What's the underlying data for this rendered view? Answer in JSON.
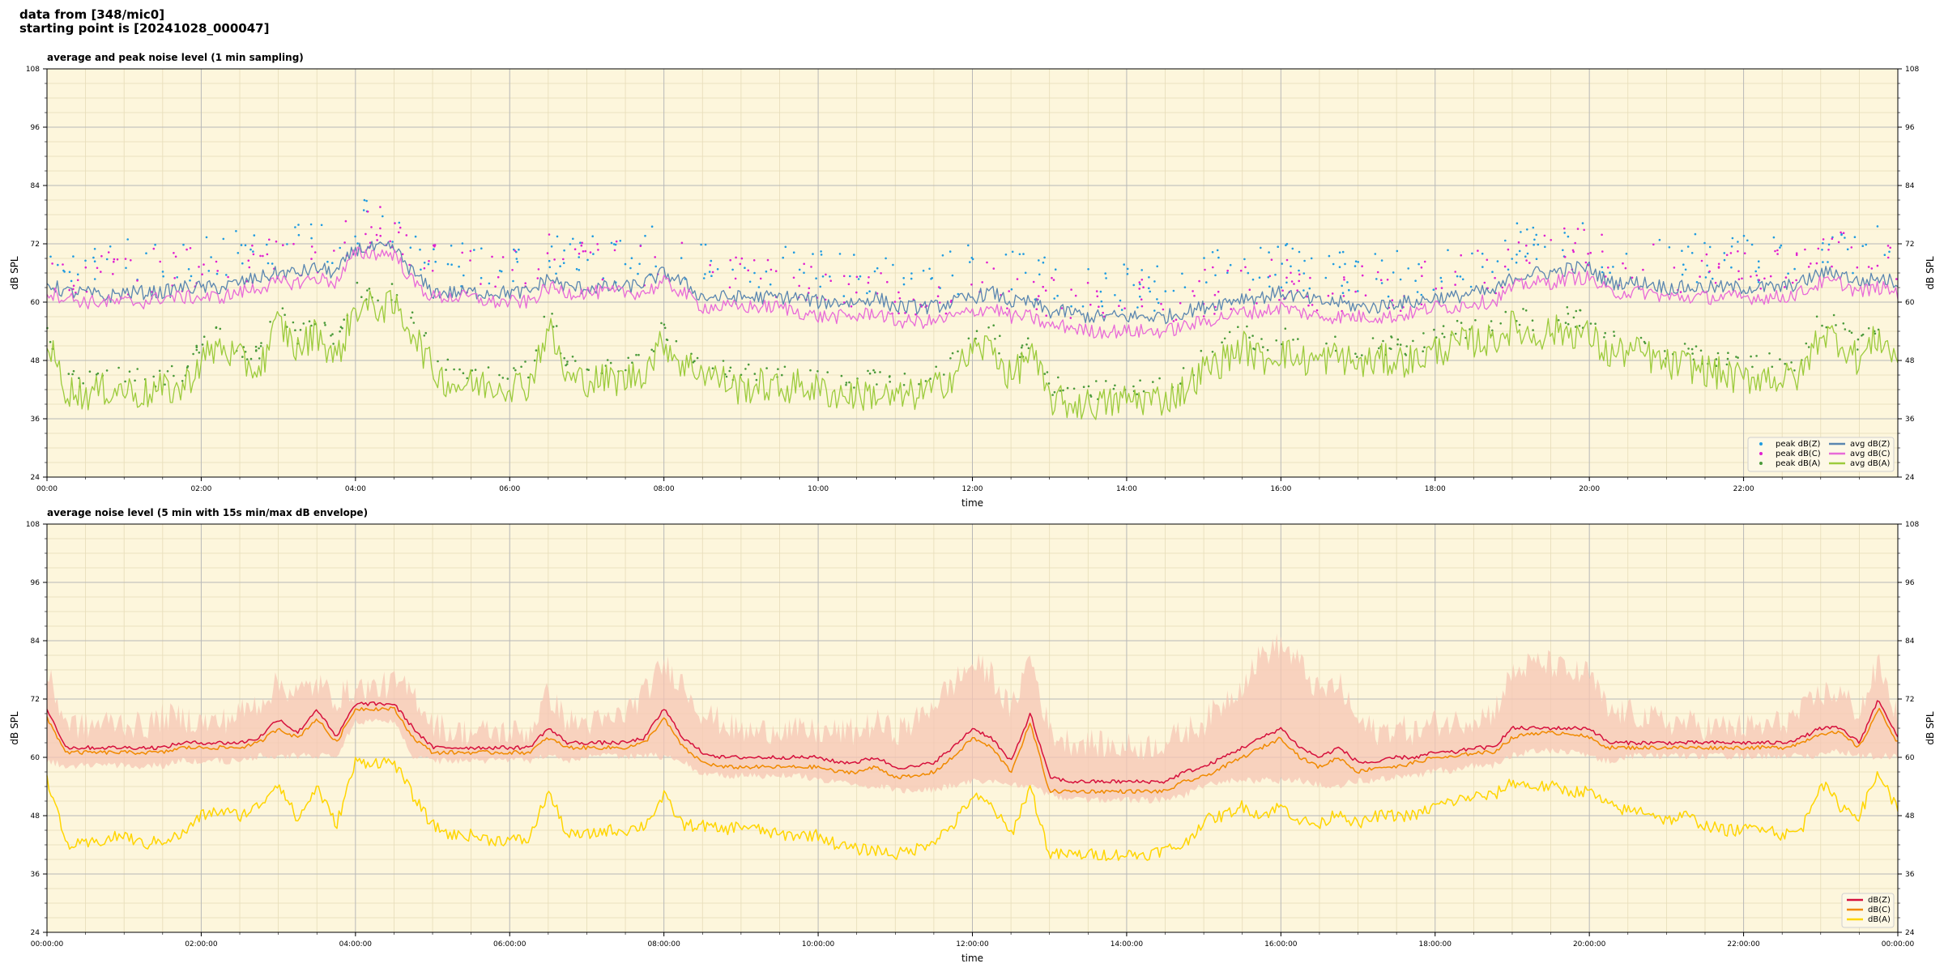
{
  "header": {
    "line1": "data from [348/mic0]",
    "line2": "starting point is [20241028_000047]"
  },
  "colors": {
    "plot_bg": "#fdf6dc",
    "grid_major": "#b8b8b8",
    "grid_minor": "#e6dcb8"
  },
  "chart_data": [
    {
      "type": "line",
      "title": "average and peak noise level (1 min sampling)",
      "xlabel": "time",
      "ylabel": "dB SPL",
      "ylabel_right": "dB SPL",
      "xlim": [
        0,
        24
      ],
      "ylim": [
        24,
        108
      ],
      "yticks": [
        24,
        36,
        48,
        60,
        72,
        84,
        96,
        108
      ],
      "xtick_labels": [
        "00:00",
        "02:00",
        "04:00",
        "06:00",
        "08:00",
        "10:00",
        "12:00",
        "14:00",
        "16:00",
        "18:00",
        "20:00",
        "22:00"
      ],
      "legend_position": "lower-right",
      "legend": [
        {
          "label": "peak dB(Z)",
          "kind": "dot",
          "color": "#1f9be0"
        },
        {
          "label": "peak dB(C)",
          "kind": "dot",
          "color": "#e020d0"
        },
        {
          "label": "peak dB(A)",
          "kind": "dot",
          "color": "#4a9a3a"
        },
        {
          "label": "avg dB(Z)",
          "kind": "line",
          "color": "#5a86b0"
        },
        {
          "label": "avg dB(C)",
          "kind": "line",
          "color": "#e86ad8"
        },
        {
          "label": "avg dB(A)",
          "kind": "line",
          "color": "#9ccb3c"
        }
      ],
      "x_hours": [
        0,
        0.25,
        0.5,
        0.75,
        1.0,
        1.25,
        1.5,
        1.75,
        2.0,
        2.25,
        2.5,
        2.75,
        3.0,
        3.25,
        3.5,
        3.75,
        4.0,
        4.25,
        4.5,
        4.75,
        5.0,
        5.25,
        5.5,
        5.75,
        6.0,
        6.25,
        6.5,
        6.75,
        7.0,
        7.25,
        7.5,
        7.75,
        8.0,
        8.25,
        8.5,
        8.75,
        9.0,
        9.25,
        9.5,
        9.75,
        10.0,
        10.25,
        10.5,
        10.75,
        11.0,
        11.25,
        11.5,
        11.75,
        12.0,
        12.25,
        12.5,
        12.75,
        13.0,
        13.25,
        13.5,
        13.75,
        14.0,
        14.25,
        14.5,
        14.75,
        15.0,
        15.25,
        15.5,
        15.75,
        16.0,
        16.25,
        16.5,
        16.75,
        17.0,
        17.25,
        17.5,
        17.75,
        18.0,
        18.25,
        18.5,
        18.75,
        19.0,
        19.25,
        19.5,
        19.75,
        20.0,
        20.25,
        20.5,
        20.75,
        21.0,
        21.25,
        21.5,
        21.75,
        22.0,
        22.25,
        22.5,
        22.75,
        23.0,
        23.25,
        23.5,
        23.75,
        24.0
      ],
      "series": [
        {
          "name": "avg dB(Z)",
          "color": "#5a86b0",
          "values": [
            64,
            62,
            62,
            61,
            62,
            62,
            62,
            63,
            63,
            63,
            64,
            65,
            66,
            66,
            67,
            66,
            71,
            71,
            71,
            66,
            62,
            62,
            62,
            62,
            62,
            62,
            65,
            63,
            63,
            63,
            63,
            64,
            66,
            64,
            61,
            61,
            61,
            61,
            61,
            61,
            60,
            60,
            60,
            61,
            59,
            59,
            59,
            60,
            61,
            62,
            60,
            60,
            58,
            58,
            57,
            57,
            57,
            57,
            57,
            58,
            59,
            60,
            61,
            61,
            62,
            61,
            60,
            60,
            59,
            59,
            60,
            60,
            61,
            61,
            62,
            62,
            65,
            66,
            66,
            67,
            67,
            64,
            64,
            64,
            63,
            63,
            63,
            63,
            63,
            63,
            63,
            64,
            66,
            66,
            64,
            65,
            64
          ]
        },
        {
          "name": "avg dB(C)",
          "color": "#e86ad8",
          "values": [
            62,
            61,
            60,
            60,
            60,
            60,
            61,
            61,
            61,
            61,
            62,
            63,
            64,
            64,
            65,
            64,
            70,
            70,
            70,
            64,
            61,
            61,
            61,
            60,
            60,
            60,
            63,
            62,
            62,
            62,
            62,
            62,
            64,
            62,
            59,
            59,
            59,
            59,
            59,
            58,
            57,
            57,
            57,
            58,
            56,
            56,
            56,
            57,
            58,
            59,
            57,
            57,
            55,
            55,
            54,
            54,
            54,
            54,
            54,
            55,
            56,
            57,
            58,
            58,
            59,
            58,
            57,
            57,
            57,
            57,
            57,
            58,
            59,
            59,
            60,
            60,
            63,
            64,
            64,
            65,
            65,
            62,
            62,
            62,
            61,
            61,
            61,
            61,
            61,
            61,
            61,
            62,
            64,
            64,
            62,
            63,
            62
          ]
        },
        {
          "name": "avg dB(A)",
          "color": "#9ccb3c",
          "values": [
            52,
            42,
            41,
            42,
            42,
            41,
            42,
            42,
            48,
            51,
            48,
            46,
            56,
            50,
            54,
            48,
            59,
            59,
            59,
            54,
            46,
            43,
            43,
            43,
            43,
            43,
            55,
            44,
            44,
            44,
            44,
            46,
            52,
            47,
            46,
            44,
            42,
            43,
            42,
            43,
            42,
            41,
            41,
            41,
            40,
            41,
            42,
            45,
            50,
            51,
            44,
            50,
            40,
            39,
            39,
            39,
            40,
            40,
            40,
            42,
            46,
            48,
            51,
            48,
            50,
            48,
            48,
            49,
            47,
            48,
            48,
            48,
            50,
            51,
            52,
            52,
            55,
            53,
            54,
            54,
            53,
            49,
            50,
            49,
            47,
            47,
            46,
            45,
            44,
            45,
            44,
            45,
            54,
            52,
            48,
            53,
            48
          ]
        }
      ]
    },
    {
      "type": "line",
      "title": "average noise level (5 min with 15s min/max dB envelope)",
      "xlabel": "time",
      "ylabel": "dB SPL",
      "ylabel_right": "dB SPL",
      "xlim": [
        0,
        24
      ],
      "ylim": [
        24,
        108
      ],
      "yticks": [
        24,
        36,
        48,
        60,
        72,
        84,
        96,
        108
      ],
      "xtick_labels": [
        "00:00:00",
        "02:00:00",
        "04:00:00",
        "06:00:00",
        "08:00:00",
        "10:00:00",
        "12:00:00",
        "14:00:00",
        "16:00:00",
        "18:00:00",
        "20:00:00",
        "22:00:00",
        "00:00:00"
      ],
      "legend_position": "lower-right",
      "legend": [
        {
          "label": "dB(Z)",
          "kind": "line",
          "color": "#d6103c"
        },
        {
          "label": "dB(C)",
          "kind": "line",
          "color": "#f08a00"
        },
        {
          "label": "dB(A)",
          "kind": "line",
          "color": "#ffd500"
        }
      ],
      "envelope_color": "#f6c6b4",
      "x_hours": [
        0,
        0.25,
        0.5,
        0.75,
        1.0,
        1.25,
        1.5,
        1.75,
        2.0,
        2.25,
        2.5,
        2.75,
        3.0,
        3.25,
        3.5,
        3.75,
        4.0,
        4.25,
        4.5,
        4.75,
        5.0,
        5.25,
        5.5,
        5.75,
        6.0,
        6.25,
        6.5,
        6.75,
        7.0,
        7.25,
        7.5,
        7.75,
        8.0,
        8.25,
        8.5,
        8.75,
        9.0,
        9.25,
        9.5,
        9.75,
        10.0,
        10.25,
        10.5,
        10.75,
        11.0,
        11.25,
        11.5,
        11.75,
        12.0,
        12.25,
        12.5,
        12.75,
        13.0,
        13.25,
        13.5,
        13.75,
        14.0,
        14.25,
        14.5,
        14.75,
        15.0,
        15.25,
        15.5,
        15.75,
        16.0,
        16.25,
        16.5,
        16.75,
        17.0,
        17.25,
        17.5,
        17.75,
        18.0,
        18.25,
        18.5,
        18.75,
        19.0,
        19.25,
        19.5,
        19.75,
        20.0,
        20.25,
        20.5,
        20.75,
        21.0,
        21.25,
        21.5,
        21.75,
        22.0,
        22.25,
        22.5,
        22.75,
        23.0,
        23.25,
        23.5,
        23.75,
        24.0
      ],
      "envelope_max": [
        76,
        66,
        65,
        66,
        66,
        65,
        67,
        67,
        66,
        66,
        68,
        70,
        74,
        72,
        74,
        71,
        73,
        73,
        74,
        72,
        66,
        64,
        64,
        64,
        64,
        64,
        72,
        66,
        66,
        66,
        68,
        72,
        78,
        74,
        68,
        66,
        64,
        64,
        65,
        64,
        64,
        64,
        64,
        66,
        64,
        66,
        70,
        74,
        78,
        76,
        68,
        80,
        64,
        62,
        62,
        61,
        61,
        61,
        62,
        64,
        66,
        70,
        74,
        80,
        82,
        78,
        72,
        74,
        66,
        64,
        65,
        64,
        66,
        66,
        67,
        68,
        76,
        78,
        78,
        76,
        76,
        68,
        68,
        67,
        66,
        66,
        65,
        65,
        65,
        65,
        66,
        68,
        72,
        72,
        68,
        78,
        67
      ],
      "envelope_min": [
        60,
        59,
        59,
        59,
        59,
        59,
        59,
        60,
        60,
        60,
        60,
        61,
        61,
        61,
        61,
        61,
        68,
        68,
        68,
        61,
        60,
        60,
        60,
        60,
        60,
        60,
        61,
        60,
        61,
        61,
        61,
        61,
        61,
        60,
        57,
        57,
        57,
        57,
        57,
        57,
        56,
        56,
        55,
        55,
        54,
        54,
        54,
        55,
        56,
        56,
        55,
        55,
        53,
        52,
        52,
        52,
        52,
        52,
        52,
        53,
        55,
        56,
        56,
        56,
        56,
        56,
        55,
        55,
        56,
        56,
        57,
        57,
        58,
        58,
        59,
        59,
        61,
        62,
        62,
        62,
        61,
        60,
        61,
        61,
        61,
        61,
        61,
        61,
        61,
        61,
        61,
        61,
        61,
        62,
        61,
        61,
        61
      ],
      "series": [
        {
          "name": "dB(Z)",
          "color": "#d6103c",
          "values": [
            70,
            62,
            62,
            62,
            62,
            62,
            62,
            63,
            63,
            63,
            63,
            64,
            68,
            65,
            70,
            64,
            71,
            71,
            71,
            66,
            62,
            62,
            62,
            62,
            62,
            62,
            66,
            63,
            63,
            63,
            63,
            64,
            70,
            64,
            61,
            60,
            60,
            60,
            60,
            60,
            60,
            59,
            59,
            60,
            58,
            58,
            59,
            62,
            66,
            64,
            59,
            69,
            56,
            55,
            55,
            55,
            55,
            55,
            55,
            57,
            58,
            60,
            62,
            64,
            66,
            62,
            60,
            62,
            59,
            59,
            60,
            60,
            61,
            61,
            62,
            62,
            66,
            66,
            66,
            66,
            66,
            63,
            63,
            63,
            63,
            63,
            63,
            63,
            63,
            63,
            63,
            64,
            66,
            66,
            63,
            72,
            64
          ]
        },
        {
          "name": "dB(C)",
          "color": "#f08a00",
          "values": [
            68,
            61,
            61,
            61,
            61,
            61,
            61,
            62,
            62,
            62,
            62,
            63,
            66,
            64,
            68,
            63,
            70,
            70,
            70,
            64,
            61,
            61,
            61,
            61,
            61,
            61,
            64,
            62,
            62,
            62,
            62,
            63,
            68,
            62,
            59,
            58,
            58,
            58,
            58,
            58,
            58,
            57,
            57,
            58,
            56,
            56,
            57,
            60,
            64,
            62,
            57,
            67,
            53,
            53,
            53,
            53,
            53,
            53,
            53,
            55,
            56,
            58,
            60,
            62,
            64,
            60,
            58,
            60,
            57,
            58,
            58,
            59,
            60,
            60,
            61,
            61,
            64,
            65,
            65,
            65,
            64,
            62,
            62,
            62,
            62,
            62,
            62,
            62,
            62,
            62,
            62,
            63,
            65,
            65,
            62,
            70,
            63
          ]
        },
        {
          "name": "dB(A)",
          "color": "#ffd500",
          "values": [
            56,
            42,
            42,
            43,
            44,
            42,
            43,
            44,
            48,
            49,
            48,
            50,
            55,
            47,
            54,
            46,
            59,
            59,
            59,
            52,
            46,
            44,
            44,
            43,
            43,
            43,
            53,
            44,
            44,
            45,
            45,
            46,
            52,
            46,
            46,
            45,
            46,
            45,
            44,
            44,
            44,
            42,
            41,
            41,
            40,
            41,
            43,
            46,
            52,
            50,
            44,
            54,
            40,
            40,
            40,
            40,
            40,
            40,
            41,
            42,
            47,
            48,
            50,
            48,
            50,
            47,
            46,
            49,
            46,
            48,
            48,
            48,
            50,
            51,
            52,
            52,
            55,
            54,
            54,
            53,
            53,
            50,
            49,
            49,
            47,
            48,
            46,
            45,
            45,
            46,
            44,
            45,
            55,
            50,
            48,
            57,
            49
          ]
        }
      ]
    }
  ]
}
